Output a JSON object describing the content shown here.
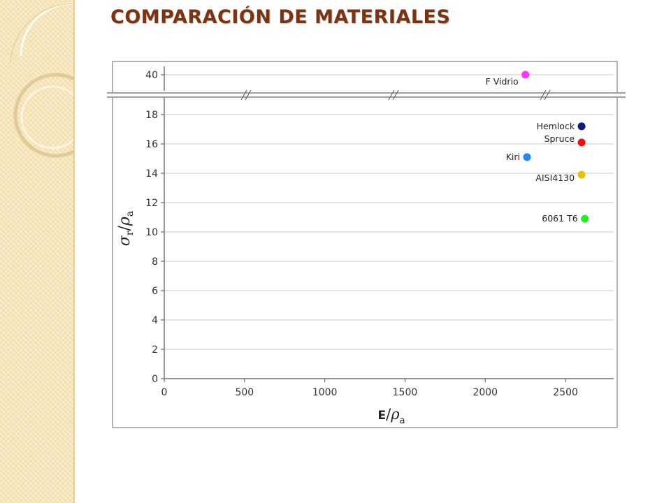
{
  "title": "COMPARACIÓN DE MATERIALES",
  "colors": {
    "title": "#7a3413",
    "sidebar": "#f6e4b6",
    "grid": "#c8c8c8"
  },
  "chart_data": {
    "type": "scatter",
    "title": "",
    "xlabel": "E/ρa",
    "ylabel": "σr/ρa",
    "xlim": [
      0,
      2800
    ],
    "ylim": [
      0,
      19
    ],
    "y_axis_break": {
      "lower_max": 19,
      "upper_tick": 40
    },
    "x_ticks": [
      0,
      500,
      1000,
      1500,
      2000,
      2500
    ],
    "y_ticks": [
      0,
      2,
      4,
      6,
      8,
      10,
      12,
      14,
      16,
      18
    ],
    "grid": true,
    "points": [
      {
        "label": "F Vidrio",
        "x": 2250,
        "y": 40,
        "color": "#ff33ff"
      },
      {
        "label": "Hemlock",
        "x": 2600,
        "y": 17.2,
        "color": "#0a1f7a"
      },
      {
        "label": "Spruce",
        "x": 2600,
        "y": 16.1,
        "color": "#ee1111"
      },
      {
        "label": "Kiri",
        "x": 2260,
        "y": 15.1,
        "color": "#2288ff"
      },
      {
        "label": "AISI4130",
        "x": 2600,
        "y": 13.9,
        "color": "#e6c200"
      },
      {
        "label": "6061 T6",
        "x": 2620,
        "y": 10.9,
        "color": "#22ee22"
      }
    ]
  }
}
